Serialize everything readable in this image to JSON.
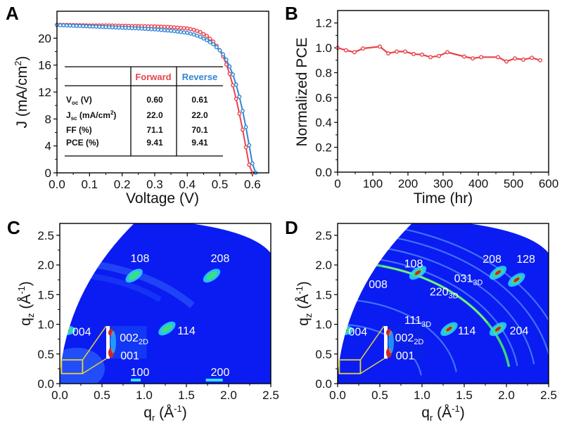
{
  "chart_data": [
    {
      "panel": "A",
      "type": "line",
      "xlabel": "Voltage (V)",
      "ylabel": "J (mA/cm²)",
      "ylabel_parts": {
        "main": "J (mA/cm",
        "sup": "2",
        "end": ")"
      },
      "xlim": [
        0,
        0.65
      ],
      "ylim": [
        0,
        24
      ],
      "xticks": [
        "0.0",
        "0.1",
        "0.2",
        "0.3",
        "0.4",
        "0.5",
        "0.6"
      ],
      "xtick_values": [
        0,
        0.1,
        0.2,
        0.3,
        0.4,
        0.5,
        0.6
      ],
      "yticks": [
        "0",
        "4",
        "8",
        "12",
        "16",
        "20"
      ],
      "ytick_values": [
        0,
        4,
        8,
        12,
        16,
        20
      ],
      "series": [
        {
          "name": "Forward",
          "color": "#e8434b",
          "x": [
            0.0,
            0.05,
            0.1,
            0.15,
            0.2,
            0.25,
            0.3,
            0.35,
            0.4,
            0.42,
            0.44,
            0.46,
            0.48,
            0.5,
            0.51,
            0.52,
            0.53,
            0.54,
            0.55,
            0.56,
            0.57,
            0.58,
            0.59,
            0.6
          ],
          "y": [
            22.0,
            21.95,
            21.9,
            21.9,
            21.85,
            21.8,
            21.75,
            21.65,
            21.45,
            21.25,
            20.9,
            20.35,
            19.5,
            18.2,
            17.3,
            16.1,
            14.7,
            13.0,
            11.0,
            8.8,
            6.4,
            3.8,
            1.2,
            0.0
          ]
        },
        {
          "name": "Reverse",
          "color": "#2f86d6",
          "x": [
            0.0,
            0.05,
            0.1,
            0.15,
            0.2,
            0.25,
            0.3,
            0.35,
            0.4,
            0.42,
            0.44,
            0.46,
            0.48,
            0.5,
            0.51,
            0.52,
            0.53,
            0.54,
            0.55,
            0.56,
            0.57,
            0.58,
            0.59,
            0.6,
            0.61
          ],
          "y": [
            21.95,
            21.85,
            21.75,
            21.65,
            21.55,
            21.45,
            21.3,
            21.1,
            20.8,
            20.55,
            20.2,
            19.7,
            19.1,
            18.2,
            17.6,
            16.8,
            15.8,
            14.6,
            13.1,
            11.3,
            9.2,
            6.8,
            4.1,
            1.4,
            0.0
          ]
        }
      ],
      "table": {
        "headers": [
          "",
          "Forward",
          "Reverse"
        ],
        "rows": [
          {
            "label": "V",
            "label_sub": "oc",
            "label_end": " (V)",
            "forward": "0.60",
            "reverse": "0.61"
          },
          {
            "label": "J",
            "label_sub": "sc",
            "label_end": " (mA/cm",
            "label_sup": "2",
            "label_close": ")",
            "forward": "22.0",
            "reverse": "22.0"
          },
          {
            "label": "FF (%)",
            "forward": "71.1",
            "reverse": "70.1"
          },
          {
            "label": "PCE (%)",
            "forward": "9.41",
            "reverse": "9.41"
          }
        ]
      }
    },
    {
      "panel": "B",
      "type": "line",
      "xlabel": "Time (hr)",
      "ylabel": "Normalized PCE",
      "xlim": [
        0,
        600
      ],
      "ylim": [
        0,
        1.3
      ],
      "xticks": [
        "0",
        "100",
        "200",
        "300",
        "400",
        "500",
        "600"
      ],
      "xtick_values": [
        0,
        100,
        200,
        300,
        400,
        500,
        600
      ],
      "yticks": [
        "0.0",
        "0.2",
        "0.4",
        "0.6",
        "0.8",
        "1.0",
        "1.2"
      ],
      "ytick_values": [
        0,
        0.2,
        0.4,
        0.6,
        0.8,
        1.0,
        1.2
      ],
      "series": [
        {
          "name": "Normalized PCE",
          "color": "#e8434b",
          "x": [
            0,
            24,
            48,
            72,
            120,
            144,
            168,
            192,
            216,
            240,
            264,
            288,
            312,
            360,
            384,
            408,
            456,
            480,
            504,
            528,
            552,
            576
          ],
          "y": [
            1.0,
            0.98,
            0.965,
            0.995,
            1.01,
            0.955,
            0.97,
            0.97,
            0.95,
            0.945,
            0.925,
            0.935,
            0.965,
            0.93,
            0.915,
            0.925,
            0.925,
            0.89,
            0.915,
            0.905,
            0.92,
            0.9
          ]
        }
      ]
    },
    {
      "panel": "C",
      "type": "heatmap",
      "xlabel": "q_r (Å⁻¹)",
      "xlabel_parts": {
        "main": "q",
        "sub": "r",
        "mid": " (Å",
        "sup": "-1",
        "end": ")"
      },
      "ylabel_parts": {
        "main": "q",
        "sub": "z",
        "mid": " (Å",
        "sup": "-1",
        "end": ")"
      },
      "xlim": [
        0,
        2.5
      ],
      "ylim": [
        0,
        2.7
      ],
      "xticks": [
        "0.0",
        "0.5",
        "1.0",
        "1.5",
        "2.0",
        "2.5"
      ],
      "xtick_values": [
        0,
        0.5,
        1.0,
        1.5,
        2.0,
        2.5
      ],
      "yticks": [
        "0.0",
        "0.5",
        "1.0",
        "1.5",
        "2.0",
        "2.5"
      ],
      "ytick_values": [
        0,
        0.5,
        1.0,
        1.5,
        2.0,
        2.5
      ],
      "peaks": [
        {
          "label": "108",
          "qr": 0.88,
          "qz": 1.82
        },
        {
          "label": "208",
          "qr": 1.8,
          "qz": 1.82
        },
        {
          "label": "114",
          "qr": 1.27,
          "qz": 0.93
        },
        {
          "label": "004",
          "qr": 0.07,
          "qz": 0.9
        },
        {
          "label": "100",
          "qr": 0.9,
          "qz": 0.06
        },
        {
          "label": "200",
          "qr": 1.83,
          "qz": 0.06
        }
      ],
      "labels": [
        {
          "text": "108",
          "qr": 0.95,
          "qz": 2.12
        },
        {
          "text": "208",
          "qr": 1.9,
          "qz": 2.12
        },
        {
          "text": "114",
          "qr": 1.5,
          "qz": 0.9
        },
        {
          "text": "004",
          "qr": 0.26,
          "qz": 0.88
        },
        {
          "text": "002",
          "sub": "2D",
          "qr": 0.88,
          "qz": 0.78
        },
        {
          "text": "001",
          "qr": 0.83,
          "qz": 0.48
        },
        {
          "text": "100",
          "qr": 0.95,
          "qz": 0.2
        },
        {
          "text": "200",
          "qr": 1.9,
          "qz": 0.2
        }
      ]
    },
    {
      "panel": "D",
      "type": "heatmap",
      "xlabel": "q_r (Å⁻¹)",
      "xlabel_parts": {
        "main": "q",
        "sub": "r",
        "mid": " (Å",
        "sup": "-1",
        "end": ")"
      },
      "ylabel_parts": {
        "main": "q",
        "sub": "z",
        "mid": " (Å",
        "sup": "-1",
        "end": ")"
      },
      "xlim": [
        0,
        2.5
      ],
      "ylim": [
        0,
        2.7
      ],
      "xticks": [
        "0.0",
        "0.5",
        "1.0",
        "1.5",
        "2.0",
        "2.5"
      ],
      "xtick_values": [
        0,
        0.5,
        1.0,
        1.5,
        2.0,
        2.5
      ],
      "yticks": [
        "0.0",
        "0.5",
        "1.0",
        "1.5",
        "2.0",
        "2.5"
      ],
      "ytick_values": [
        0,
        0.5,
        1.0,
        1.5,
        2.0,
        2.5
      ],
      "rings_q": [
        1.0,
        1.42,
        2.05,
        2.15,
        2.35,
        2.55,
        2.72
      ],
      "bright_ring_q": 2.05,
      "peaks": [
        {
          "label": "108",
          "qr": 0.95,
          "qz": 1.87
        },
        {
          "label": "208",
          "qr": 1.9,
          "qz": 1.87
        },
        {
          "label": "128",
          "qr": 2.12,
          "qz": 1.75
        },
        {
          "label": "114",
          "qr": 1.32,
          "qz": 0.92
        },
        {
          "label": "204",
          "qr": 1.9,
          "qz": 0.92
        },
        {
          "label": "004",
          "qr": 0.07,
          "qz": 0.9
        }
      ],
      "labels": [
        {
          "text": "108",
          "qr": 0.9,
          "qz": 2.03
        },
        {
          "text": "208",
          "qr": 1.83,
          "qz": 2.11
        },
        {
          "text": "128",
          "qr": 2.23,
          "qz": 2.11
        },
        {
          "text": "008",
          "qr": 0.48,
          "qz": 1.68
        },
        {
          "text": "031",
          "sub": "3D",
          "qr": 1.55,
          "qz": 1.78
        },
        {
          "text": "220",
          "sub": "3D",
          "qr": 1.26,
          "qz": 1.56
        },
        {
          "text": "111",
          "sub": "3D",
          "qr": 0.95,
          "qz": 1.08
        },
        {
          "text": "114",
          "qr": 1.53,
          "qz": 0.9
        },
        {
          "text": "204",
          "qr": 2.15,
          "qz": 0.9
        },
        {
          "text": "004",
          "qr": 0.24,
          "qz": 0.88
        },
        {
          "text": "002",
          "sub": "2D",
          "qr": 0.85,
          "qz": 0.78
        },
        {
          "text": "001",
          "qr": 0.8,
          "qz": 0.48
        }
      ]
    }
  ],
  "panel_letters": [
    "A",
    "B",
    "C",
    "D"
  ],
  "colors": {
    "forward": "#e8434b",
    "reverse": "#2f86d6",
    "map_background": "#0a1cf2",
    "inset_box": "#e6d23a"
  }
}
